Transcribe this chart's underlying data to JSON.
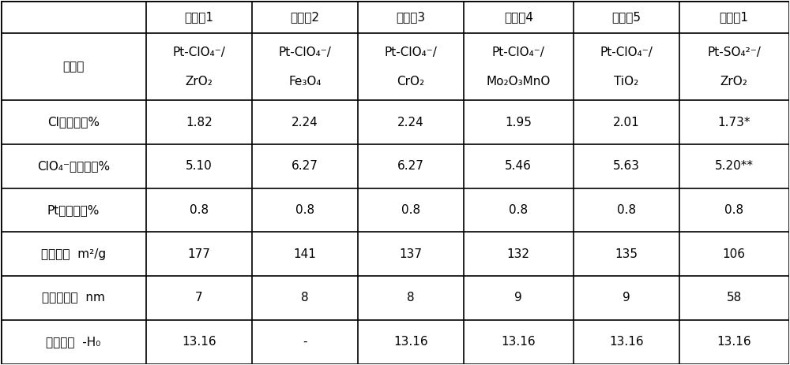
{
  "col_headers": [
    "",
    "实施例1",
    "实施例2",
    "实施例3",
    "实施例4",
    "实施例5",
    "对比例1"
  ],
  "cat_label": "催化剂",
  "cat_line1": [
    "Pt-ClO₄⁻/",
    "Pt-ClO₄⁻/",
    "Pt-ClO₄⁻/",
    "Pt-ClO₄⁻/",
    "Pt-ClO₄⁻/",
    "Pt-SO₄²⁻/"
  ],
  "cat_line2": [
    "ZrO₂",
    "Fe₃O₄",
    "CrO₂",
    "Mo₂O₃MnO",
    "TiO₂",
    "ZrO₂"
  ],
  "row_labels": [
    "Cl含量，重%",
    "ClO₄⁻含量，重%",
    "Pt含量，重%",
    "比表面，  m²/g",
    "晶粒尺寸，  nm",
    "酸强度，  -H₀"
  ],
  "row_values": [
    [
      "1.82",
      "2.24",
      "2.24",
      "1.95",
      "2.01",
      "1.73*"
    ],
    [
      "5.10",
      "6.27",
      "6.27",
      "5.46",
      "5.63",
      "5.20**"
    ],
    [
      "0.8",
      "0.8",
      "0.8",
      "0.8",
      "0.8",
      "0.8"
    ],
    [
      "177",
      "141",
      "137",
      "132",
      "135",
      "106"
    ],
    [
      "7",
      "8",
      "8",
      "9",
      "9",
      "58"
    ],
    [
      "13.16",
      "-",
      "13.16",
      "13.16",
      "13.16",
      "13.16"
    ]
  ],
  "col_widths": [
    1.85,
    1.35,
    1.35,
    1.35,
    1.4,
    1.35,
    1.4
  ],
  "row_heights": [
    0.6,
    1.25,
    0.82,
    0.82,
    0.82,
    0.82,
    0.82,
    0.82
  ],
  "background_color": "#ffffff",
  "line_color": "#000000",
  "text_color": "#000000",
  "font_size": 11,
  "header_font_size": 11
}
